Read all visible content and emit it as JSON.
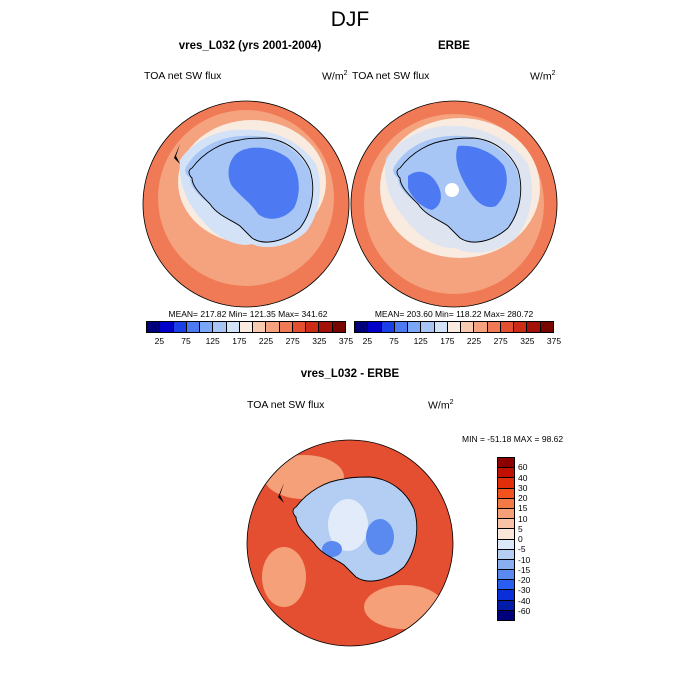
{
  "title": "DJF",
  "panels": {
    "left": {
      "title": "vres_L032 (yrs 2001-2004)",
      "field_label": "TOA net SW flux",
      "units_base": "W/m",
      "units_exp": "2",
      "stats": "MEAN= 217.82  Min= 121.35  Max= 341.62"
    },
    "right": {
      "title": "ERBE",
      "field_label": "TOA net SW flux",
      "units_base": "W/m",
      "units_exp": "2",
      "stats": "MEAN= 203.60  Min= 118.22  Max= 280.72"
    },
    "diff": {
      "title": "vres_L032 - ERBE",
      "field_label": "TOA net SW flux",
      "units_base": "W/m",
      "units_exp": "2",
      "stats": "MIN = -51.18 MAX =  98.62"
    }
  },
  "colorbar_h": {
    "ticks": [
      "25",
      "75",
      "125",
      "175",
      "225",
      "275",
      "325",
      "375"
    ],
    "colors": [
      "#00007a",
      "#0000c8",
      "#1a3fe6",
      "#4d7af2",
      "#7aa6f5",
      "#a8c6f5",
      "#d3e2f7",
      "#f9ebe0",
      "#f8cbb0",
      "#f5a27e",
      "#f07a55",
      "#e44f31",
      "#cc2b16",
      "#a31208",
      "#780500"
    ]
  },
  "colorbar_v": {
    "ticks": [
      "60",
      "40",
      "30",
      "20",
      "15",
      "10",
      "5",
      "0",
      "-5",
      "-10",
      "-15",
      "-20",
      "-30",
      "-40",
      "-60"
    ],
    "colors": [
      "#8c0000",
      "#c21000",
      "#e22d0a",
      "#f2531e",
      "#f47a45",
      "#f5a078",
      "#f8c4a8",
      "#fbe7da",
      "#dbe8f7",
      "#b4cdf3",
      "#8aaff0",
      "#5a8af0",
      "#2a5ef0",
      "#0a2fd8",
      "#001ca8",
      "#00007a"
    ]
  },
  "map_colors": {
    "ocean_mid": "#f5a27e",
    "ocean_outer": "#f07a55",
    "ocean_inner": "#f9ebe0",
    "sea_ice": "#d3e2f7",
    "ice_low": "#a8c6f5",
    "ice_high": "#4d7af2",
    "diff_ocean": "#e44f31",
    "diff_ocean_light": "#f5a078",
    "diff_ice": "#b4cdf3",
    "diff_ice_dark": "#5a8af0"
  }
}
